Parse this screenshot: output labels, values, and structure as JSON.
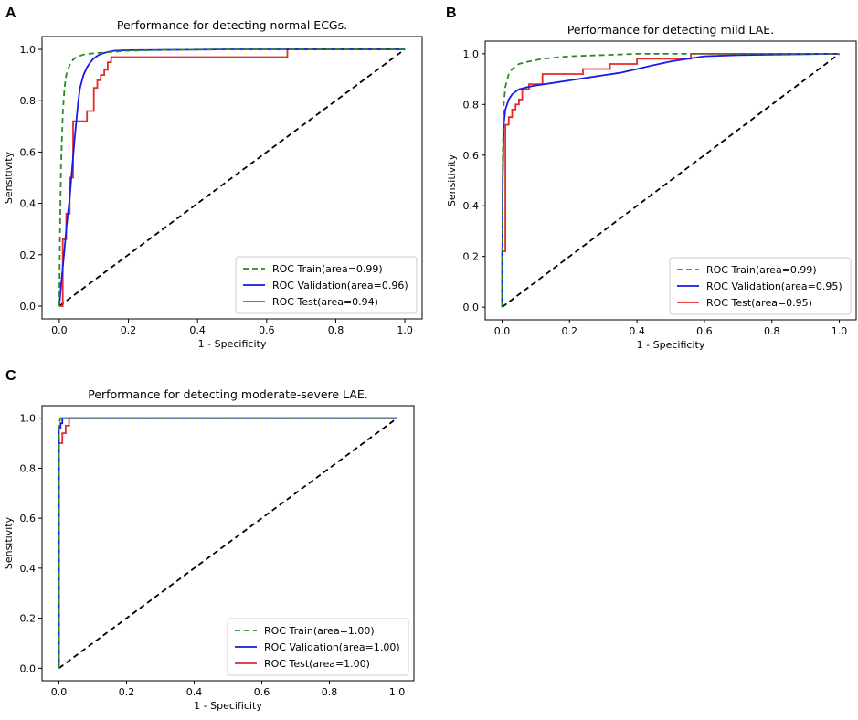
{
  "chart_data": [
    {
      "panel": "A",
      "type": "line",
      "title": "Performance for detecting normal ECGs.",
      "xlabel": "1 - Specificity",
      "ylabel": "Sensitivity",
      "xlim": [
        0,
        1
      ],
      "ylim": [
        0,
        1
      ],
      "xticks": [
        "0.0",
        "0.2",
        "0.4",
        "0.6",
        "0.8",
        "1.0"
      ],
      "yticks": [
        "0.0",
        "0.2",
        "0.4",
        "0.6",
        "0.8",
        "1.0"
      ],
      "legend_position": "lower-right",
      "colors": {
        "train": "#2a8a2a",
        "validation": "#1a1ae6",
        "test": "#e62a2a",
        "chance": "#000000"
      },
      "series": [
        {
          "name": "ROC Train(area=0.99)",
          "key": "train",
          "style": "dashed",
          "x": [
            0,
            0.002,
            0.005,
            0.01,
            0.015,
            0.02,
            0.03,
            0.04,
            0.05,
            0.07,
            0.1,
            0.15,
            0.2,
            0.3,
            0.5,
            1.0
          ],
          "y": [
            0,
            0.3,
            0.55,
            0.75,
            0.85,
            0.9,
            0.94,
            0.96,
            0.97,
            0.98,
            0.985,
            0.99,
            0.995,
            0.998,
            1.0,
            1.0
          ]
        },
        {
          "name": "ROC Validation(area=0.96)",
          "key": "validation",
          "style": "solid",
          "x": [
            0,
            0.005,
            0.01,
            0.015,
            0.02,
            0.025,
            0.03,
            0.035,
            0.04,
            0.045,
            0.05,
            0.055,
            0.06,
            0.07,
            0.08,
            0.09,
            0.1,
            0.11,
            0.12,
            0.14,
            0.16,
            0.2,
            0.3,
            0.5,
            1.0
          ],
          "y": [
            0,
            0.08,
            0.15,
            0.22,
            0.3,
            0.36,
            0.42,
            0.5,
            0.58,
            0.66,
            0.73,
            0.8,
            0.85,
            0.9,
            0.93,
            0.95,
            0.965,
            0.975,
            0.982,
            0.99,
            0.995,
            0.997,
            0.998,
            1.0,
            1.0
          ]
        },
        {
          "name": "ROC Test(area=0.94)",
          "key": "test",
          "style": "solid",
          "x": [
            0,
            0.01,
            0.01,
            0.02,
            0.02,
            0.03,
            0.03,
            0.04,
            0.04,
            0.05,
            0.05,
            0.08,
            0.08,
            0.1,
            0.1,
            0.11,
            0.11,
            0.12,
            0.12,
            0.13,
            0.13,
            0.14,
            0.14,
            0.15,
            0.15,
            0.2,
            0.2,
            0.66,
            0.66,
            1.0
          ],
          "y": [
            0,
            0,
            0.26,
            0.26,
            0.36,
            0.36,
            0.5,
            0.5,
            0.72,
            0.72,
            0.72,
            0.72,
            0.76,
            0.76,
            0.85,
            0.85,
            0.88,
            0.88,
            0.9,
            0.9,
            0.92,
            0.92,
            0.95,
            0.95,
            0.97,
            0.97,
            0.97,
            0.97,
            1.0,
            1.0
          ]
        },
        {
          "name": "chance",
          "key": "chance",
          "style": "dashed",
          "x": [
            0,
            1
          ],
          "y": [
            0,
            1
          ]
        }
      ]
    },
    {
      "panel": "B",
      "type": "line",
      "title": "Performance for detecting mild LAE.",
      "xlabel": "1 - Specificity",
      "ylabel": "Sensitivity",
      "xlim": [
        0,
        1
      ],
      "ylim": [
        0,
        1
      ],
      "xticks": [
        "0.0",
        "0.2",
        "0.4",
        "0.6",
        "0.8",
        "1.0"
      ],
      "yticks": [
        "0.0",
        "0.2",
        "0.4",
        "0.6",
        "0.8",
        "1.0"
      ],
      "legend_position": "lower-right",
      "colors": {
        "train": "#2a8a2a",
        "validation": "#1a1ae6",
        "test": "#e62a2a",
        "chance": "#000000"
      },
      "series": [
        {
          "name": "ROC Train(area=0.99)",
          "key": "train",
          "style": "dashed",
          "x": [
            0,
            0.002,
            0.005,
            0.01,
            0.02,
            0.03,
            0.05,
            0.08,
            0.12,
            0.2,
            0.3,
            0.4,
            0.6,
            1.0
          ],
          "y": [
            0,
            0.6,
            0.8,
            0.87,
            0.92,
            0.94,
            0.96,
            0.97,
            0.98,
            0.99,
            0.995,
            1.0,
            1.0,
            1.0
          ]
        },
        {
          "name": "ROC Validation(area=0.95)",
          "key": "validation",
          "style": "solid",
          "x": [
            0,
            0.002,
            0.005,
            0.01,
            0.02,
            0.03,
            0.05,
            0.08,
            0.1,
            0.15,
            0.2,
            0.25,
            0.3,
            0.35,
            0.4,
            0.45,
            0.5,
            0.55,
            0.6,
            0.7,
            1.0
          ],
          "y": [
            0,
            0.5,
            0.72,
            0.78,
            0.82,
            0.84,
            0.86,
            0.87,
            0.875,
            0.885,
            0.895,
            0.905,
            0.915,
            0.925,
            0.94,
            0.955,
            0.97,
            0.98,
            0.99,
            0.995,
            1.0
          ]
        },
        {
          "name": "ROC Test(area=0.95)",
          "key": "test",
          "style": "solid",
          "x": [
            0,
            0.0,
            0.01,
            0.01,
            0.02,
            0.02,
            0.03,
            0.03,
            0.04,
            0.04,
            0.05,
            0.05,
            0.06,
            0.06,
            0.08,
            0.08,
            0.12,
            0.12,
            0.24,
            0.24,
            0.32,
            0.32,
            0.4,
            0.4,
            0.56,
            0.56,
            1.0
          ],
          "y": [
            0,
            0.22,
            0.22,
            0.72,
            0.72,
            0.75,
            0.75,
            0.78,
            0.78,
            0.8,
            0.8,
            0.82,
            0.82,
            0.86,
            0.86,
            0.88,
            0.88,
            0.92,
            0.92,
            0.94,
            0.94,
            0.96,
            0.96,
            0.98,
            0.98,
            1.0,
            1.0
          ]
        },
        {
          "name": "chance",
          "key": "chance",
          "style": "dashed",
          "x": [
            0,
            1
          ],
          "y": [
            0,
            1
          ]
        }
      ]
    },
    {
      "panel": "C",
      "type": "line",
      "title": "Performance for detecting moderate-severe LAE.",
      "xlabel": "1 - Specificity",
      "ylabel": "Sensitivity",
      "xlim": [
        0,
        1
      ],
      "ylim": [
        0,
        1
      ],
      "xticks": [
        "0.0",
        "0.2",
        "0.4",
        "0.6",
        "0.8",
        "1.0"
      ],
      "yticks": [
        "0.0",
        "0.2",
        "0.4",
        "0.6",
        "0.8",
        "1.0"
      ],
      "legend_position": "lower-right",
      "colors": {
        "train": "#2a8a2a",
        "validation": "#1a1ae6",
        "test": "#e62a2a",
        "chance": "#000000"
      },
      "series": [
        {
          "name": "ROC Train(area=1.00)",
          "key": "train",
          "style": "dashed",
          "x": [
            0,
            0.0,
            0.005,
            1.0
          ],
          "y": [
            0,
            0.98,
            1.0,
            1.0
          ]
        },
        {
          "name": "ROC Validation(area=1.00)",
          "key": "validation",
          "style": "solid",
          "x": [
            0,
            0.0,
            0.005,
            0.005,
            0.01,
            0.01,
            0.015,
            0.015,
            1.0
          ],
          "y": [
            0,
            0.96,
            0.96,
            0.98,
            0.98,
            1.0,
            1.0,
            1.0,
            1.0
          ]
        },
        {
          "name": "ROC Test(area=1.00)",
          "key": "test",
          "style": "solid",
          "x": [
            0,
            0.0,
            0.01,
            0.01,
            0.02,
            0.02,
            0.03,
            0.03,
            1.0
          ],
          "y": [
            0,
            0.9,
            0.9,
            0.94,
            0.94,
            0.97,
            0.97,
            1.0,
            1.0
          ]
        },
        {
          "name": "chance",
          "key": "chance",
          "style": "dashed",
          "x": [
            0,
            1
          ],
          "y": [
            0,
            1
          ]
        }
      ]
    }
  ]
}
